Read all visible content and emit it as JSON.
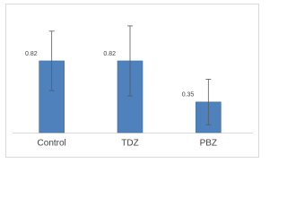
{
  "chart_data": {
    "type": "bar",
    "categories": [
      "Control",
      "TDZ",
      "PBZ"
    ],
    "values": [
      0.82,
      0.82,
      0.35
    ],
    "errors": [
      0.34,
      0.4,
      0.26
    ],
    "color": "#4f81bd"
  }
}
